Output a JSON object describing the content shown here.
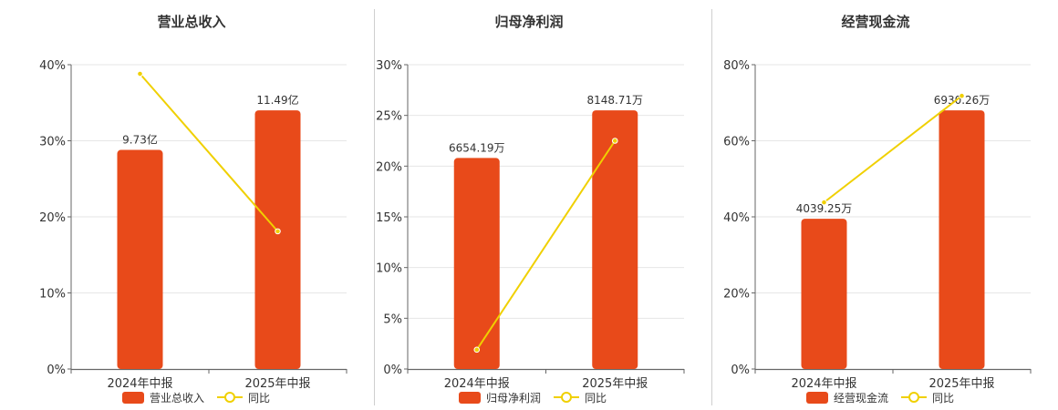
{
  "chart_data": [
    {
      "type": "bar+line",
      "title": "营业总收入",
      "categories": [
        "2024年中报",
        "2025年中报"
      ],
      "yaxis": {
        "ticks": [
          "0%",
          "10%",
          "20%",
          "30%",
          "40%"
        ],
        "min": 0,
        "max": 40
      },
      "bar_series": {
        "name": "营业总收入",
        "color": "#E84A1A",
        "values": [
          28.8,
          34.0
        ],
        "labels": [
          "9.73亿",
          "11.49亿"
        ]
      },
      "line_series": {
        "name": "同比",
        "color": "#F0D000",
        "values": [
          38.8,
          18.1
        ]
      }
    },
    {
      "type": "bar+line",
      "title": "归母净利润",
      "categories": [
        "2024年中报",
        "2025年中报"
      ],
      "yaxis": {
        "ticks": [
          "0%",
          "5%",
          "10%",
          "15%",
          "20%",
          "25%",
          "30%"
        ],
        "min": 0,
        "max": 30
      },
      "bar_series": {
        "name": "归母净利润",
        "color": "#E84A1A",
        "values": [
          20.8,
          25.5
        ],
        "labels": [
          "6654.19万",
          "8148.71万"
        ]
      },
      "line_series": {
        "name": "同比",
        "color": "#F0D000",
        "values": [
          1.9,
          22.5
        ]
      }
    },
    {
      "type": "bar+line",
      "title": "经营现金流",
      "categories": [
        "2024年中报",
        "2025年中报"
      ],
      "yaxis": {
        "ticks": [
          "0%",
          "20%",
          "40%",
          "60%",
          "80%"
        ],
        "min": 0,
        "max": 80
      },
      "bar_series": {
        "name": "经营现金流",
        "color": "#E84A1A",
        "values": [
          39.5,
          68.0
        ],
        "labels": [
          "4039.25万",
          "6930.26万"
        ]
      },
      "line_series": {
        "name": "同比",
        "color": "#F0D000",
        "values": [
          43.8,
          71.8
        ]
      }
    }
  ]
}
